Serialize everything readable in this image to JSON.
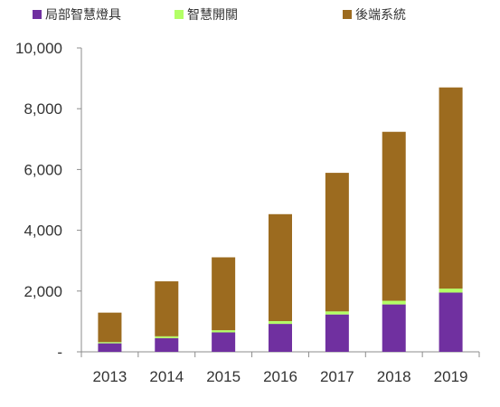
{
  "chart_data": {
    "type": "bar",
    "stacked": true,
    "categories": [
      "2013",
      "2014",
      "2015",
      "2016",
      "2017",
      "2018",
      "2019"
    ],
    "series": [
      {
        "name": "局部智慧燈具",
        "color": "#7030a0",
        "values": [
          280,
          450,
          640,
          920,
          1230,
          1560,
          1950
        ]
      },
      {
        "name": "智慧開關",
        "color": "#b3ff66",
        "values": [
          40,
          60,
          70,
          90,
          100,
          120,
          130
        ]
      },
      {
        "name": "後端系統",
        "color": "#9c6b1f",
        "values": [
          970,
          1810,
          2400,
          3520,
          4560,
          5560,
          6620
        ]
      }
    ],
    "y_tick_labels": [
      "-",
      "2,000",
      "4,000",
      "6,000",
      "8,000",
      "10,000"
    ],
    "y_ticks": [
      0,
      2000,
      4000,
      6000,
      8000,
      10000
    ],
    "ylim": [
      0,
      10000
    ],
    "grid": false,
    "legend_position": "top"
  }
}
